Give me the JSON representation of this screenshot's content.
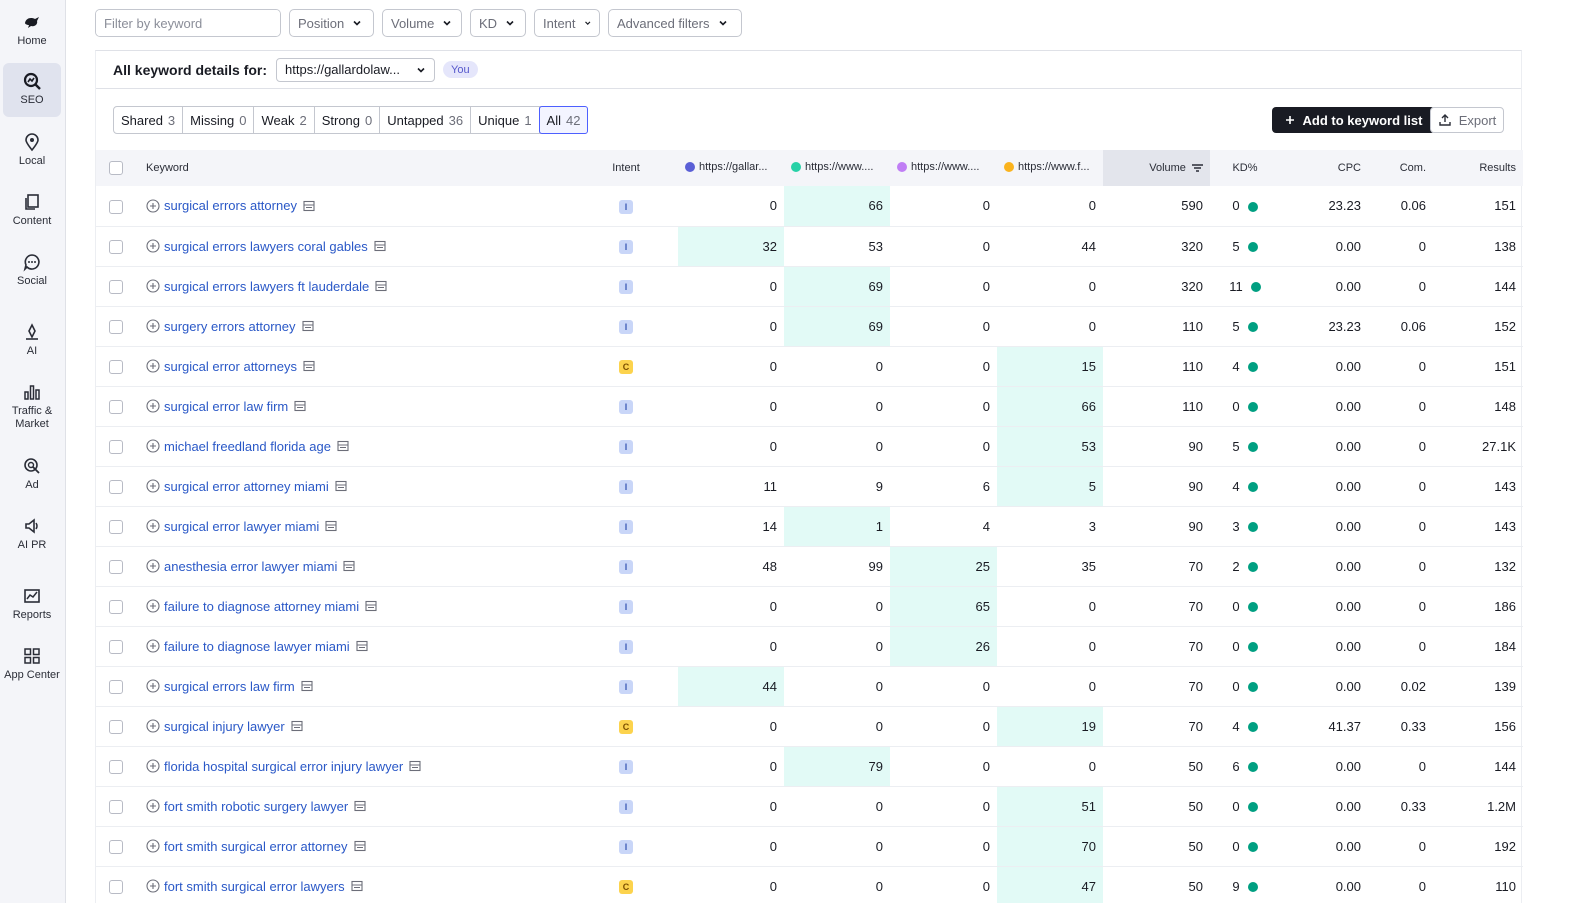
{
  "sidebar": {
    "items": [
      {
        "label": "Home",
        "icon": "home-icon"
      },
      {
        "label": "SEO",
        "icon": "seo-icon",
        "active": true
      },
      {
        "label": "Local",
        "icon": "local-icon"
      },
      {
        "label": "Content",
        "icon": "content-icon"
      },
      {
        "label": "Social",
        "icon": "social-icon"
      },
      {
        "label": "AI",
        "icon": "ai-icon"
      },
      {
        "label": "Traffic & Market",
        "icon": "traffic-icon"
      },
      {
        "label": "Ad",
        "icon": "ad-icon"
      },
      {
        "label": "AI PR",
        "icon": "ai-pr-icon"
      },
      {
        "label": "Reports",
        "icon": "reports-icon"
      },
      {
        "label": "App Center",
        "icon": "app-center-icon"
      }
    ]
  },
  "filters": {
    "keyword_placeholder": "Filter by keyword",
    "position": "Position",
    "volume": "Volume",
    "kd": "KD",
    "intent": "Intent",
    "advanced": "Advanced filters"
  },
  "details": {
    "title": "All keyword details for:",
    "domain": "https://gallardolaw...",
    "you_badge": "You"
  },
  "segments": [
    {
      "label": "Shared",
      "count": "3"
    },
    {
      "label": "Missing",
      "count": "0"
    },
    {
      "label": "Weak",
      "count": "2"
    },
    {
      "label": "Strong",
      "count": "0"
    },
    {
      "label": "Untapped",
      "count": "36"
    },
    {
      "label": "Unique",
      "count": "1"
    },
    {
      "label": "All",
      "count": "42",
      "active": true
    }
  ],
  "actions": {
    "add_label": "Add to keyword list",
    "export_label": "Export"
  },
  "table": {
    "headers": {
      "keyword": "Keyword",
      "intent": "Intent",
      "d1": "https://gallar...",
      "d2": "https://www....",
      "d3": "https://www....",
      "d4": "https://www.f...",
      "volume": "Volume",
      "kd": "KD%",
      "cpc": "CPC",
      "com": "Com.",
      "results": "Results"
    },
    "domain_colors": [
      "#5a5fd6",
      "#27d1a7",
      "#c07ef5",
      "#fab31e"
    ],
    "rows": [
      {
        "kw": "surgical errors attorney",
        "intent": "I",
        "d": [
          "0",
          "66",
          "0",
          "0"
        ],
        "hl": 1,
        "vol": "590",
        "kd": "0",
        "cpc": "23.23",
        "com": "0.06",
        "res": "151"
      },
      {
        "kw": "surgical errors lawyers coral gables",
        "intent": "I",
        "d": [
          "32",
          "53",
          "0",
          "44"
        ],
        "hl": 0,
        "vol": "320",
        "kd": "5",
        "cpc": "0.00",
        "com": "0",
        "res": "138"
      },
      {
        "kw": "surgical errors lawyers ft lauderdale",
        "intent": "I",
        "d": [
          "0",
          "69",
          "0",
          "0"
        ],
        "hl": 1,
        "vol": "320",
        "kd": "11",
        "cpc": "0.00",
        "com": "0",
        "res": "144"
      },
      {
        "kw": "surgery errors attorney",
        "intent": "I",
        "d": [
          "0",
          "69",
          "0",
          "0"
        ],
        "hl": 1,
        "vol": "110",
        "kd": "5",
        "cpc": "23.23",
        "com": "0.06",
        "res": "152"
      },
      {
        "kw": "surgical error attorneys",
        "intent": "C",
        "d": [
          "0",
          "0",
          "0",
          "15"
        ],
        "hl": 3,
        "vol": "110",
        "kd": "4",
        "cpc": "0.00",
        "com": "0",
        "res": "151"
      },
      {
        "kw": "surgical error law firm",
        "intent": "I",
        "d": [
          "0",
          "0",
          "0",
          "66"
        ],
        "hl": 3,
        "vol": "110",
        "kd": "0",
        "cpc": "0.00",
        "com": "0",
        "res": "148"
      },
      {
        "kw": "michael freedland florida age",
        "intent": "I",
        "d": [
          "0",
          "0",
          "0",
          "53"
        ],
        "hl": 3,
        "vol": "90",
        "kd": "5",
        "cpc": "0.00",
        "com": "0",
        "res": "27.1K"
      },
      {
        "kw": "surgical error attorney miami",
        "intent": "I",
        "d": [
          "11",
          "9",
          "6",
          "5"
        ],
        "hl": 3,
        "vol": "90",
        "kd": "4",
        "cpc": "0.00",
        "com": "0",
        "res": "143"
      },
      {
        "kw": "surgical error lawyer miami",
        "intent": "I",
        "d": [
          "14",
          "1",
          "4",
          "3"
        ],
        "hl": 1,
        "vol": "90",
        "kd": "3",
        "cpc": "0.00",
        "com": "0",
        "res": "143"
      },
      {
        "kw": "anesthesia error lawyer miami",
        "intent": "I",
        "d": [
          "48",
          "99",
          "25",
          "35"
        ],
        "hl": 2,
        "vol": "70",
        "kd": "2",
        "cpc": "0.00",
        "com": "0",
        "res": "132"
      },
      {
        "kw": "failure to diagnose attorney miami",
        "intent": "I",
        "d": [
          "0",
          "0",
          "65",
          "0"
        ],
        "hl": 2,
        "vol": "70",
        "kd": "0",
        "cpc": "0.00",
        "com": "0",
        "res": "186"
      },
      {
        "kw": "failure to diagnose lawyer miami",
        "intent": "I",
        "d": [
          "0",
          "0",
          "26",
          "0"
        ],
        "hl": 2,
        "vol": "70",
        "kd": "0",
        "cpc": "0.00",
        "com": "0",
        "res": "184"
      },
      {
        "kw": "surgical errors law firm",
        "intent": "I",
        "d": [
          "44",
          "0",
          "0",
          "0"
        ],
        "hl": 0,
        "vol": "70",
        "kd": "0",
        "cpc": "0.00",
        "com": "0.02",
        "res": "139"
      },
      {
        "kw": "surgical injury lawyer",
        "intent": "C",
        "d": [
          "0",
          "0",
          "0",
          "19"
        ],
        "hl": 3,
        "vol": "70",
        "kd": "4",
        "cpc": "41.37",
        "com": "0.33",
        "res": "156"
      },
      {
        "kw": "florida hospital surgical error injury lawyer",
        "intent": "I",
        "d": [
          "0",
          "79",
          "0",
          "0"
        ],
        "hl": 1,
        "vol": "50",
        "kd": "6",
        "cpc": "0.00",
        "com": "0",
        "res": "144"
      },
      {
        "kw": "fort smith robotic surgery lawyer",
        "intent": "I",
        "d": [
          "0",
          "0",
          "0",
          "51"
        ],
        "hl": 3,
        "vol": "50",
        "kd": "0",
        "cpc": "0.00",
        "com": "0.33",
        "res": "1.2M"
      },
      {
        "kw": "fort smith surgical error attorney",
        "intent": "I",
        "d": [
          "0",
          "0",
          "0",
          "70"
        ],
        "hl": 3,
        "vol": "50",
        "kd": "0",
        "cpc": "0.00",
        "com": "0",
        "res": "192"
      },
      {
        "kw": "fort smith surgical error lawyers",
        "intent": "C",
        "d": [
          "0",
          "0",
          "0",
          "47"
        ],
        "hl": 3,
        "vol": "50",
        "kd": "9",
        "cpc": "0.00",
        "com": "0",
        "res": "110"
      }
    ]
  }
}
